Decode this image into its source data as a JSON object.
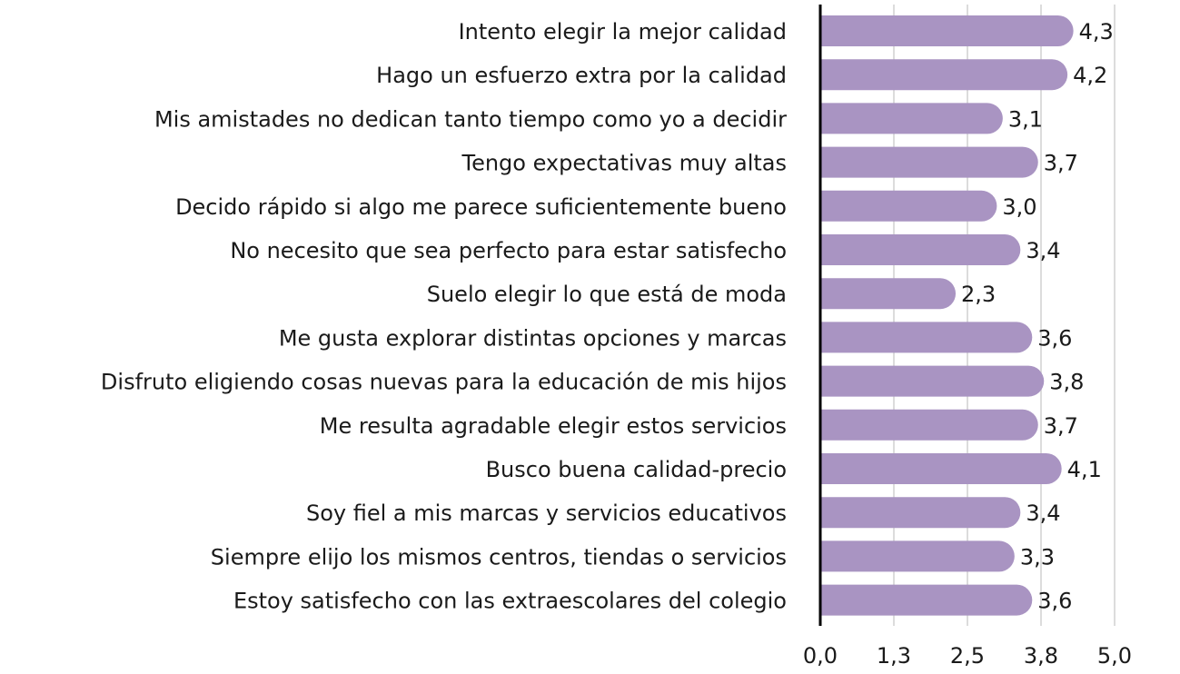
{
  "chart_data": {
    "type": "bar",
    "orientation": "horizontal",
    "categories": [
      "Intento elegir la mejor calidad",
      "Hago un esfuerzo extra por la calidad",
      "Mis amistades no dedican tanto tiempo como yo a decidir",
      "Tengo expectativas muy altas",
      "Decido rápido si algo me parece suficientemente bueno",
      "No necesito que sea perfecto para estar satisfecho",
      "Suelo elegir lo que está de moda",
      "Me gusta explorar distintas opciones y marcas",
      "Disfruto eligiendo cosas nuevas para la educación de mis hijos",
      "Me resulta agradable elegir estos servicios",
      "Busco buena calidad-precio",
      "Soy fiel a mis marcas y servicios educativos",
      "Siempre elijo los mismos centros, tiendas o servicios",
      "Estoy satisfecho con las extraescolares del colegio"
    ],
    "values": [
      4.3,
      4.2,
      3.1,
      3.7,
      3.0,
      3.4,
      2.3,
      3.6,
      3.8,
      3.7,
      4.1,
      3.4,
      3.3,
      3.6
    ],
    "value_labels": [
      "4,3",
      "4,2",
      "3,1",
      "3,7",
      "3,0",
      "3,4",
      "2,3",
      "3,6",
      "3,8",
      "3,7",
      "4,1",
      "3,4",
      "3,3",
      "3,6"
    ],
    "xlim": [
      0,
      5
    ],
    "xticks": [
      0,
      1.25,
      2.5,
      3.75,
      5
    ],
    "xtick_labels": [
      "0,0",
      "1,3",
      "2,5",
      "3,8",
      "5,0"
    ],
    "grid": "vertical",
    "bar_color": "#a994c2",
    "title": "",
    "xlabel": "",
    "ylabel": ""
  }
}
